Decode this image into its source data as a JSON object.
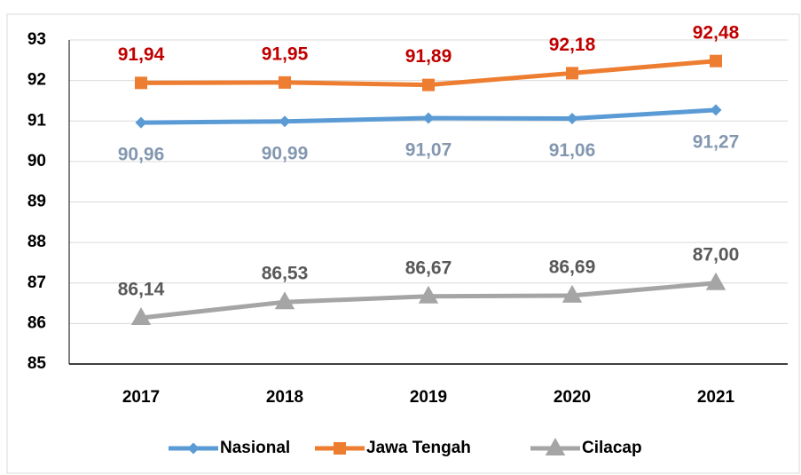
{
  "chart_data": {
    "type": "line",
    "categories": [
      "2017",
      "2018",
      "2019",
      "2020",
      "2021"
    ],
    "series": [
      {
        "name": "Nasional",
        "color": "#5b9bd5",
        "label_color": "#8497b0",
        "marker": "diamond",
        "values": [
          90.96,
          90.99,
          91.07,
          91.06,
          91.27
        ],
        "value_labels": [
          "90,96",
          "90,99",
          "91,07",
          "91,06",
          "91,27"
        ]
      },
      {
        "name": "Jawa Tengah",
        "color": "#ed7d31",
        "label_color": "#c00000",
        "marker": "square",
        "values": [
          91.94,
          91.95,
          91.89,
          92.18,
          92.48
        ],
        "value_labels": [
          "91,94",
          "91,95",
          "91,89",
          "92,18",
          "92,48"
        ]
      },
      {
        "name": "Cilacap",
        "color": "#a5a5a5",
        "label_color": "#595959",
        "marker": "triangle",
        "values": [
          86.14,
          86.53,
          86.67,
          86.69,
          87.0
        ],
        "value_labels": [
          "86,14",
          "86,53",
          "86,67",
          "86,69",
          "87,00"
        ]
      }
    ],
    "ylim": [
      85,
      93
    ],
    "yticks": [
      85,
      86,
      87,
      88,
      89,
      90,
      91,
      92,
      93
    ],
    "grid": true,
    "legend": "bottom"
  }
}
